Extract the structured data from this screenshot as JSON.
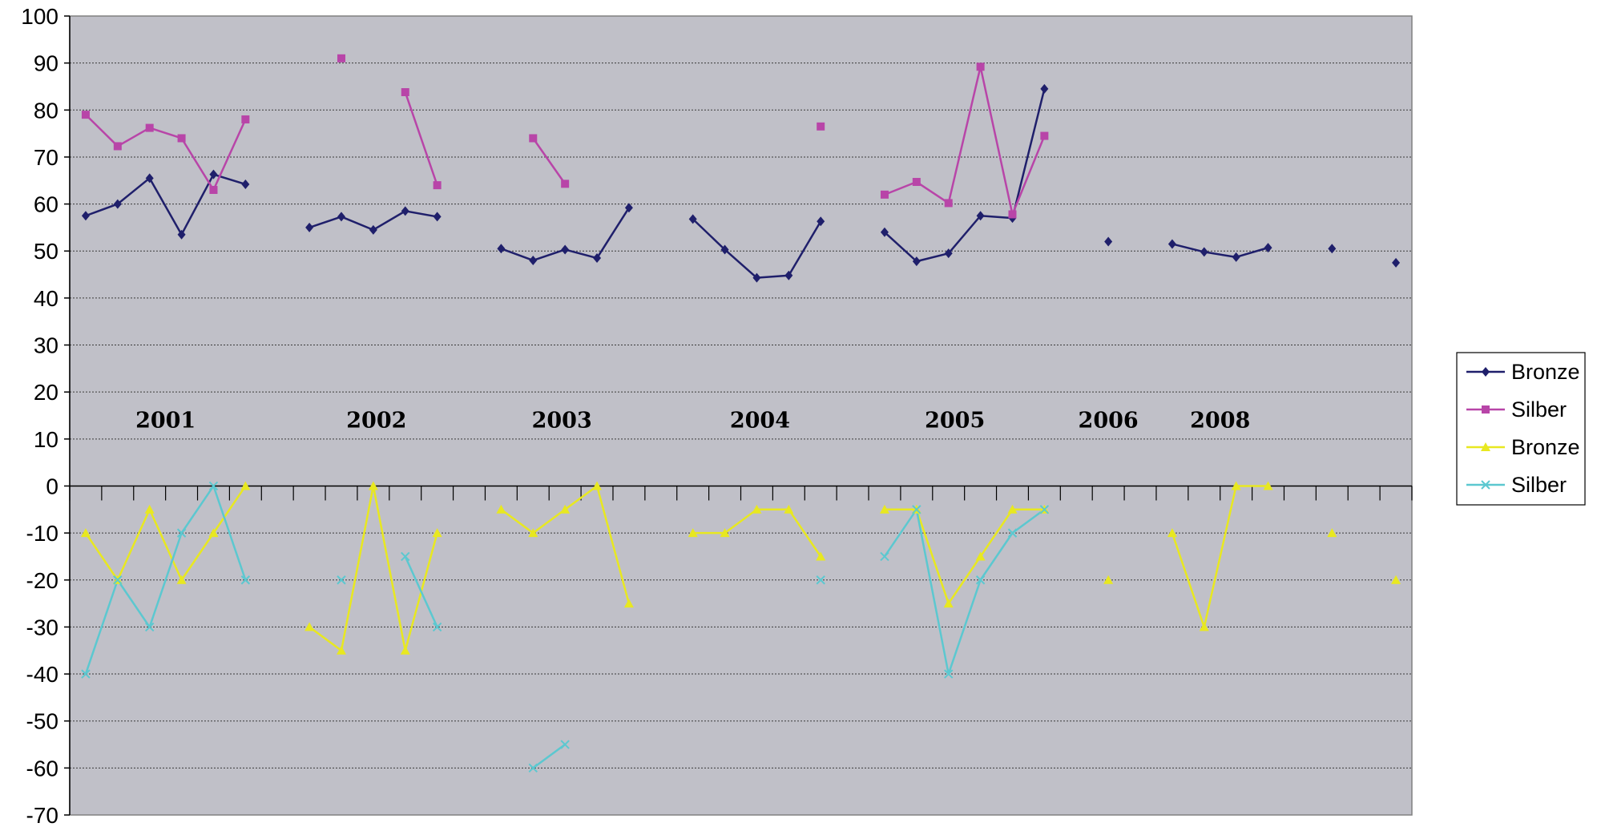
{
  "chart_data": {
    "type": "line",
    "title": "",
    "xlabel": "",
    "ylabel": "",
    "ylim": [
      -70,
      100
    ],
    "yticks": [
      100,
      90,
      80,
      70,
      60,
      50,
      40,
      30,
      20,
      10,
      0,
      -10,
      -20,
      -30,
      -40,
      -50,
      -60,
      -70
    ],
    "grid": true,
    "legend_position": "right",
    "plot_background": "#C0C0C8",
    "n_slots": 42,
    "group_labels": [
      {
        "text": "2001",
        "x": 2.5
      },
      {
        "text": "2002",
        "x": 9.1
      },
      {
        "text": "2003",
        "x": 14.9
      },
      {
        "text": "2004",
        "x": 21.1
      },
      {
        "text": "2005",
        "x": 27.2
      },
      {
        "text": "2006",
        "x": 32.0
      },
      {
        "text": "2008",
        "x": 35.5
      }
    ],
    "series": [
      {
        "name": "Bronze",
        "color": "#1F1F6B",
        "marker": "diamond",
        "values": [
          57.5,
          60,
          65.5,
          53.5,
          66.3,
          64.2,
          null,
          55,
          57.3,
          54.5,
          58.5,
          57.3,
          null,
          50.5,
          48,
          50.3,
          48.5,
          59.2,
          null,
          56.8,
          50.3,
          44.3,
          44.8,
          56.3,
          null,
          54,
          47.8,
          49.5,
          57.5,
          57,
          84.5,
          null,
          52,
          null,
          51.5,
          49.8,
          48.7,
          50.7,
          null,
          50.5,
          null,
          47.5
        ]
      },
      {
        "name": "Silber",
        "color": "#B845A8",
        "marker": "square",
        "values": [
          79,
          72.3,
          76.2,
          74,
          63,
          78,
          null,
          null,
          91,
          null,
          83.8,
          64,
          null,
          null,
          74,
          64.3,
          null,
          null,
          null,
          null,
          null,
          null,
          null,
          76.5,
          null,
          62,
          64.7,
          60.2,
          89.2,
          57.8,
          74.5,
          null,
          null,
          null,
          null,
          null,
          null,
          null,
          null,
          null,
          null,
          null
        ]
      },
      {
        "name": "Bronze",
        "color": "#E8E820",
        "marker": "triangle",
        "values": [
          -10,
          -20,
          -5,
          -20,
          -10,
          0,
          null,
          -30,
          -35,
          0,
          -35,
          -10,
          null,
          -5,
          -10,
          -5,
          0,
          -25,
          null,
          -10,
          -10,
          -5,
          -5,
          -15,
          null,
          -5,
          -5,
          -25,
          -15,
          -5,
          -5,
          null,
          -20,
          null,
          -10,
          -30,
          0,
          0,
          null,
          -10,
          null,
          -20
        ]
      },
      {
        "name": "Silber",
        "color": "#5CC8D0",
        "marker": "x",
        "values": [
          -40,
          -20,
          -30,
          -10,
          0,
          -20,
          null,
          null,
          -20,
          null,
          -15,
          -30,
          null,
          null,
          -60,
          -55,
          null,
          null,
          null,
          null,
          null,
          null,
          null,
          -20,
          null,
          -15,
          -5,
          -40,
          -20,
          -10,
          -5,
          null,
          null,
          null,
          null,
          null,
          null,
          null,
          null,
          null,
          null,
          null
        ]
      }
    ]
  }
}
